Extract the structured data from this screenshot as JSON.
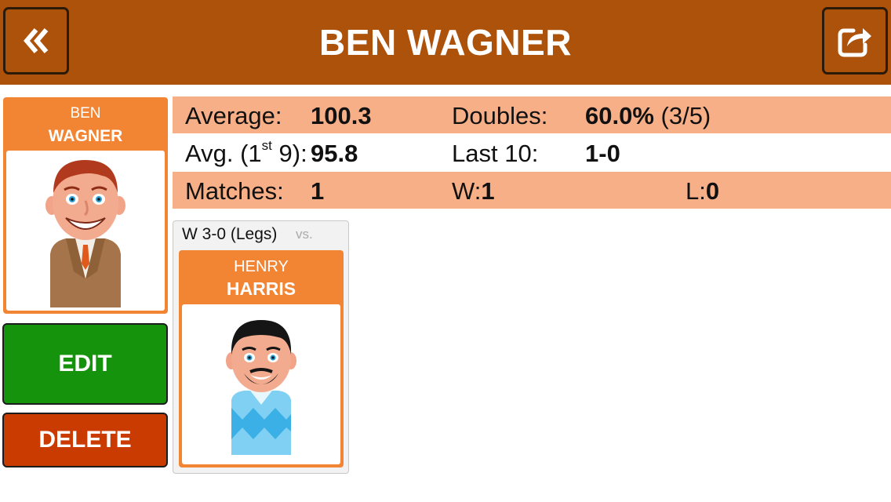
{
  "header": {
    "title": "BEN WAGNER",
    "back_icon": "double-chevron-left-icon",
    "share_icon": "share-icon"
  },
  "player": {
    "first_name": "BEN",
    "last_name": "WAGNER",
    "avatar": "ben-wagner-avatar"
  },
  "actions": {
    "edit_label": "EDIT",
    "delete_label": "DELETE"
  },
  "stats": {
    "average_label": "Average:",
    "average_value": "100.3",
    "avg9_label_pre": "Avg. (1",
    "avg9_label_sup": "st",
    "avg9_label_post": " 9):",
    "avg9_value": "95.8",
    "matches_label": "Matches:",
    "matches_value": "1",
    "doubles_label": "Doubles:",
    "doubles_value": "60.0%",
    "doubles_detail": " (3/5)",
    "last10_label": "Last 10:",
    "last10_value": "1-0",
    "wins_label": "W:",
    "wins_value": "1",
    "losses_label": "L:",
    "losses_value": "0"
  },
  "matches": [
    {
      "result": "W 3-0 (Legs)",
      "vs_label": "vs.",
      "opponent_first": "HENRY",
      "opponent_last": "HARRIS",
      "avatar": "henry-harris-avatar"
    }
  ],
  "colors": {
    "header_bg": "#ad520b",
    "card_orange": "#f28534",
    "stat_row": "#f7af88",
    "edit_green": "#15930c",
    "delete_red": "#c93b00"
  }
}
